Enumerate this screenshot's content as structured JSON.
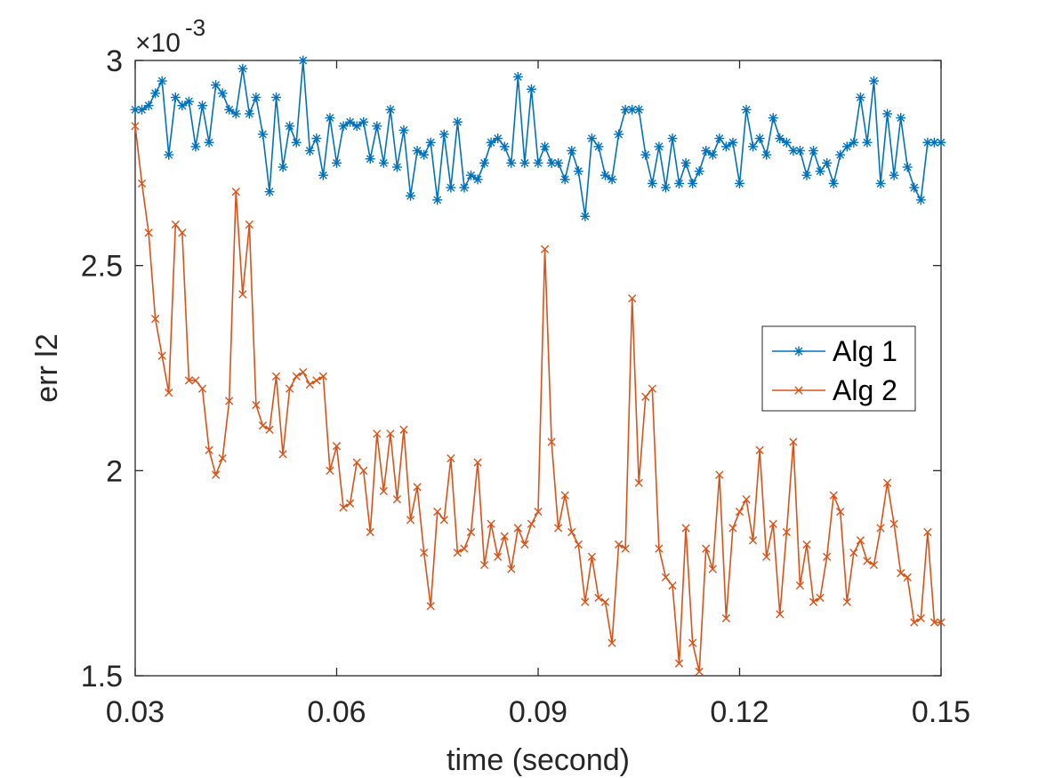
{
  "chart_data": {
    "type": "line",
    "xlabel": "time (second)",
    "ylabel": "err l2",
    "xlim": [
      0.03,
      0.15
    ],
    "ylim": [
      1.5,
      3.0
    ],
    "y_scale_label": "×10",
    "y_scale_exponent": "-3",
    "x_tick_values": [
      0.03,
      0.06,
      0.09,
      0.12,
      0.15
    ],
    "x_tick_labels": [
      "0.03",
      "0.06",
      "0.09",
      "0.12",
      "0.15"
    ],
    "y_tick_values": [
      1.5,
      2.0,
      2.5,
      3.0
    ],
    "y_tick_labels": [
      "1.5",
      "2",
      "2.5",
      "3"
    ],
    "grid": false,
    "legend_position": "center-right",
    "x": [
      0.03,
      0.031,
      0.032,
      0.033,
      0.034,
      0.035,
      0.036,
      0.037,
      0.038,
      0.039,
      0.04,
      0.041,
      0.042,
      0.043,
      0.044,
      0.045,
      0.046,
      0.047,
      0.048,
      0.049,
      0.05,
      0.051,
      0.052,
      0.053,
      0.054,
      0.055,
      0.056,
      0.057,
      0.058,
      0.059,
      0.06,
      0.061,
      0.062,
      0.063,
      0.064,
      0.065,
      0.066,
      0.067,
      0.068,
      0.069,
      0.07,
      0.071,
      0.072,
      0.073,
      0.074,
      0.075,
      0.076,
      0.077,
      0.078,
      0.079,
      0.08,
      0.081,
      0.082,
      0.083,
      0.084,
      0.085,
      0.086,
      0.087,
      0.088,
      0.089,
      0.09,
      0.091,
      0.092,
      0.093,
      0.094,
      0.095,
      0.096,
      0.097,
      0.098,
      0.099,
      0.1,
      0.101,
      0.102,
      0.103,
      0.104,
      0.105,
      0.106,
      0.107,
      0.108,
      0.109,
      0.11,
      0.111,
      0.112,
      0.113,
      0.114,
      0.115,
      0.116,
      0.117,
      0.118,
      0.119,
      0.12,
      0.121,
      0.122,
      0.123,
      0.124,
      0.125,
      0.126,
      0.127,
      0.128,
      0.129,
      0.13,
      0.131,
      0.132,
      0.133,
      0.134,
      0.135,
      0.136,
      0.137,
      0.138,
      0.139,
      0.14,
      0.141,
      0.142,
      0.143,
      0.144,
      0.145,
      0.146,
      0.147,
      0.148,
      0.149,
      0.15
    ],
    "series": [
      {
        "name": "Alg 1",
        "color": "#0072BD",
        "marker": "asterisk",
        "values": [
          2.88,
          2.88,
          2.89,
          2.92,
          2.95,
          2.77,
          2.91,
          2.89,
          2.9,
          2.79,
          2.89,
          2.8,
          2.94,
          2.92,
          2.88,
          2.87,
          2.98,
          2.87,
          2.91,
          2.82,
          2.68,
          2.91,
          2.74,
          2.84,
          2.8,
          3.0,
          2.78,
          2.81,
          2.72,
          2.86,
          2.75,
          2.84,
          2.85,
          2.84,
          2.85,
          2.76,
          2.84,
          2.75,
          2.88,
          2.74,
          2.83,
          2.67,
          2.78,
          2.77,
          2.8,
          2.66,
          2.82,
          2.69,
          2.85,
          2.69,
          2.72,
          2.71,
          2.75,
          2.8,
          2.81,
          2.79,
          2.75,
          2.96,
          2.75,
          2.93,
          2.75,
          2.79,
          2.75,
          2.75,
          2.71,
          2.78,
          2.73,
          2.62,
          2.81,
          2.79,
          2.72,
          2.71,
          2.82,
          2.88,
          2.88,
          2.88,
          2.77,
          2.7,
          2.79,
          2.69,
          2.81,
          2.7,
          2.75,
          2.7,
          2.73,
          2.78,
          2.77,
          2.81,
          2.79,
          2.8,
          2.7,
          2.88,
          2.79,
          2.81,
          2.77,
          2.86,
          2.81,
          2.8,
          2.78,
          2.78,
          2.72,
          2.78,
          2.73,
          2.75,
          2.7,
          2.77,
          2.79,
          2.8,
          2.91,
          2.8,
          2.95,
          2.7,
          2.87,
          2.72,
          2.86,
          2.74,
          2.69,
          2.66,
          2.8,
          2.8,
          2.8
        ]
      },
      {
        "name": "Alg 2",
        "color": "#D95319",
        "marker": "x",
        "values": [
          2.84,
          2.7,
          2.58,
          2.37,
          2.28,
          2.19,
          2.6,
          2.58,
          2.22,
          2.22,
          2.2,
          2.05,
          1.99,
          2.03,
          2.17,
          2.68,
          2.43,
          2.6,
          2.16,
          2.11,
          2.1,
          2.23,
          2.04,
          2.2,
          2.23,
          2.24,
          2.21,
          2.22,
          2.23,
          2.0,
          2.06,
          1.91,
          1.92,
          2.02,
          2.0,
          1.85,
          2.09,
          1.95,
          2.09,
          1.93,
          2.1,
          1.88,
          1.96,
          1.8,
          1.67,
          1.9,
          1.88,
          2.03,
          1.8,
          1.81,
          1.85,
          2.02,
          1.77,
          1.87,
          1.79,
          1.84,
          1.76,
          1.86,
          1.82,
          1.87,
          1.9,
          2.54,
          2.07,
          1.86,
          1.94,
          1.85,
          1.82,
          1.68,
          1.79,
          1.69,
          1.68,
          1.58,
          1.82,
          1.81,
          2.42,
          1.97,
          2.18,
          2.2,
          1.81,
          1.74,
          1.72,
          1.53,
          1.86,
          1.58,
          1.51,
          1.81,
          1.76,
          1.99,
          1.64,
          1.86,
          1.9,
          1.93,
          1.83,
          2.05,
          1.79,
          1.87,
          1.65,
          1.85,
          2.07,
          1.72,
          1.82,
          1.68,
          1.69,
          1.79,
          1.94,
          1.9,
          1.68,
          1.8,
          1.83,
          1.78,
          1.77,
          1.86,
          1.97,
          1.87,
          1.75,
          1.74,
          1.63,
          1.64,
          1.85,
          1.63,
          1.63
        ]
      }
    ]
  }
}
